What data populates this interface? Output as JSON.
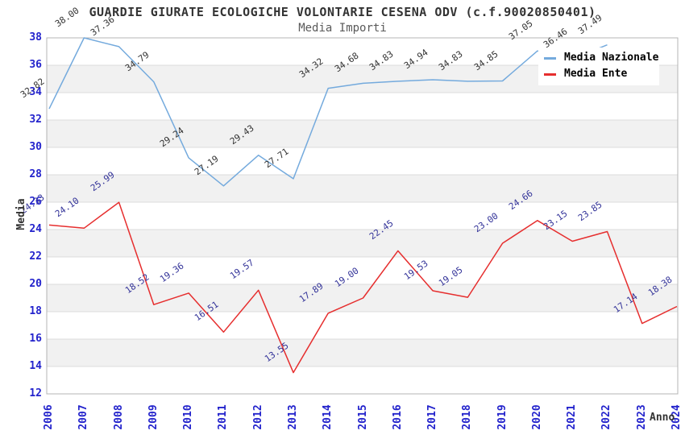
{
  "header": {
    "title": "GUARDIE GIURATE ECOLOGICHE VOLONTARIE CESENA ODV (c.f.90020850401)",
    "subtitle": "Media Importi"
  },
  "chart_data": {
    "type": "line",
    "title": "GUARDIE GIURATE ECOLOGICHE VOLONTARIE CESENA ODV (c.f.90020850401)",
    "subtitle": "Media Importi",
    "xlabel": "Anno",
    "ylabel": "Media",
    "ylim": [
      12,
      38
    ],
    "yticks": [
      12,
      14,
      16,
      18,
      20,
      22,
      24,
      26,
      28,
      30,
      32,
      34,
      36,
      38
    ],
    "grid": "horizontal alternating bands every 2 units",
    "legend_position": "top-right",
    "categories": [
      "2006",
      "2007",
      "2008",
      "2009",
      "2010",
      "2011",
      "2012",
      "2013",
      "2014",
      "2015",
      "2016",
      "2017",
      "2018",
      "2019",
      "2020",
      "2021",
      "2022",
      "2023",
      "2024"
    ],
    "series": [
      {
        "name": "Media Nazionale",
        "line_color": "#74aadd",
        "label_color": "#333333",
        "values": [
          32.82,
          38.0,
          37.36,
          34.79,
          29.24,
          27.19,
          29.43,
          27.71,
          34.32,
          34.68,
          34.83,
          34.94,
          34.83,
          34.85,
          37.05,
          36.46,
          37.49,
          null,
          null
        ],
        "labels": [
          "32.82",
          "38.00",
          "37.36",
          "34.79",
          "29.24",
          "27.19",
          "29.43",
          "27.71",
          "34.32",
          "34.68",
          "34.83",
          "34.94",
          "34.83",
          "34.85",
          "37.05",
          "36.46",
          "37.49",
          null,
          null
        ]
      },
      {
        "name": "Media Ente",
        "line_color": "#e62e2e",
        "label_color": "#333399",
        "values": [
          24.33,
          24.1,
          25.99,
          18.52,
          19.36,
          16.51,
          19.57,
          13.55,
          17.89,
          19.0,
          22.45,
          19.53,
          19.05,
          23.0,
          24.66,
          23.15,
          23.85,
          17.14,
          18.38
        ],
        "labels": [
          "24.33",
          "24.10",
          "25.99",
          "18.52",
          "19.36",
          "16.51",
          "19.57",
          "13.55",
          "17.89",
          "19.00",
          "22.45",
          "19.53",
          "19.05",
          "23.00",
          "24.66",
          "23.15",
          "23.85",
          "17.14",
          "18.38"
        ]
      }
    ]
  },
  "colors": {
    "tick_label": "#2323cc",
    "band_gray": "#f1f1f1",
    "gridline": "#dcdcdc",
    "plot_border": "#b4b4b4",
    "title": "#333333",
    "subtitle": "#5a5a5a"
  }
}
